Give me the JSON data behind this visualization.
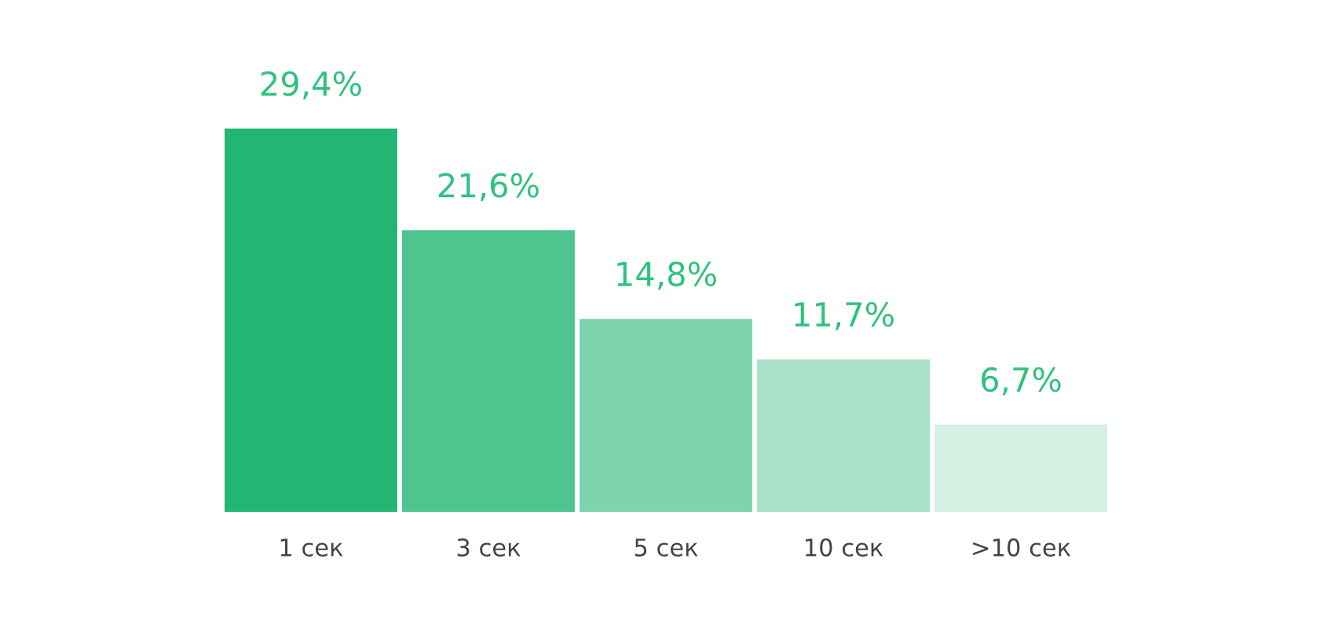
{
  "chart_data": {
    "type": "bar",
    "categories": [
      "1 сек",
      "3 сек",
      "5 сек",
      "10 сек",
      ">10 сек"
    ],
    "values": [
      29.4,
      21.6,
      14.8,
      11.7,
      6.7
    ],
    "value_labels": [
      "29,4%",
      "21,6%",
      "14,8%",
      "11,7%",
      "6,7%"
    ],
    "colors": [
      "#22b573",
      "#50c48f",
      "#7dd3ab",
      "#a7e1c7",
      "#d3f0e3"
    ],
    "grid": false,
    "legend": false
  }
}
